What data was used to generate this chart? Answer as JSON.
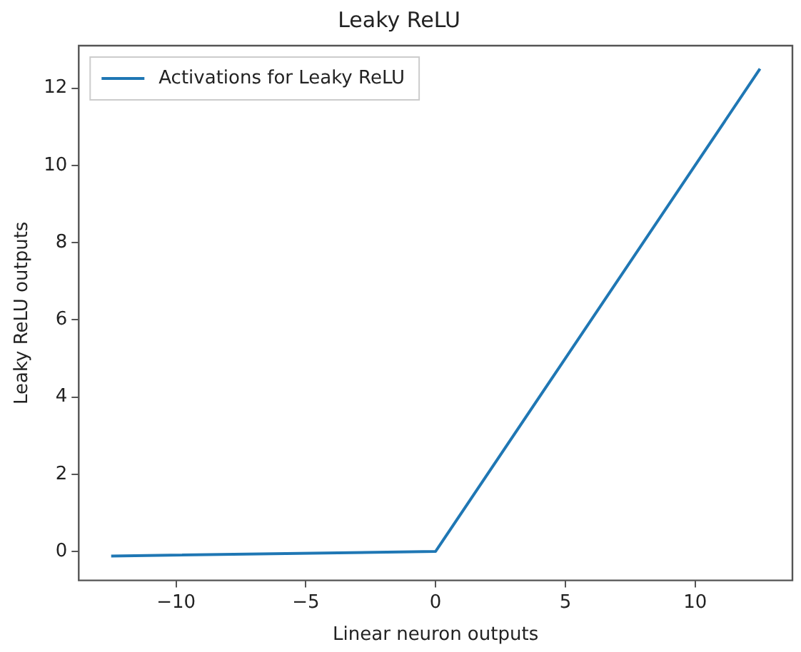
{
  "chart_data": {
    "type": "line",
    "title": "Leaky ReLU",
    "xlabel": "Linear neuron outputs",
    "ylabel": "Leaky ReLU outputs",
    "x": [
      -12.5,
      0,
      12.5
    ],
    "series": [
      {
        "name": "Activations for Leaky ReLU",
        "color": "#1f77b4",
        "values": [
          -0.12,
          0,
          12.5
        ]
      }
    ],
    "xlim": [
      -13.75,
      13.75
    ],
    "xticks": [
      {
        "value": -10,
        "label": "−10"
      },
      {
        "value": -5,
        "label": "−5"
      },
      0,
      5,
      10
    ],
    "ylim": [
      -0.75,
      13.1
    ],
    "yticks": [
      0,
      2,
      4,
      6,
      8,
      10,
      12
    ],
    "grid": false,
    "legend": "top left",
    "marker": "none",
    "line_style": "solid"
  }
}
